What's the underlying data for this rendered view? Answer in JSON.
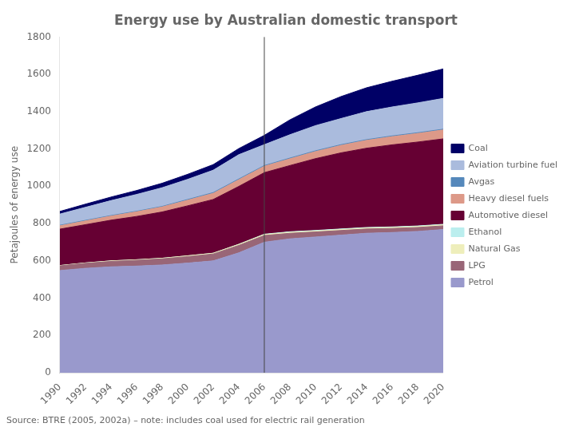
{
  "chart_data": {
    "type": "area",
    "title": "Energy use by Australian domestic transport",
    "source": "Source: BTRE (2005, 2002a) – note: includes coal used for electric rail generation",
    "ylabel": "Petajoules of energy use",
    "x": [
      1990,
      1992,
      1994,
      1996,
      1998,
      2000,
      2002,
      2004,
      2006,
      2008,
      2010,
      2012,
      2014,
      2016,
      2018,
      2020
    ],
    "xlim": [
      1990,
      2020
    ],
    "xticks": [
      1990,
      1992,
      1994,
      1996,
      1998,
      2000,
      2002,
      2004,
      2006,
      2008,
      2010,
      2012,
      2014,
      2016,
      2018,
      2020
    ],
    "ylim": [
      0,
      1800
    ],
    "yticks": [
      0,
      200,
      400,
      600,
      800,
      1000,
      1200,
      1400,
      1600,
      1800
    ],
    "stacked": true,
    "grid": false,
    "legend": "right",
    "annotations": [
      {
        "x": 2006
      }
    ],
    "series": [
      {
        "name": "Petrol",
        "color": "#9999cc",
        "values": [
          548,
          560,
          568,
          572,
          578,
          588,
          600,
          643,
          700,
          718,
          728,
          738,
          748,
          752,
          758,
          768
        ]
      },
      {
        "name": "LPG",
        "color": "#996677",
        "values": [
          25,
          27,
          29,
          31,
          33,
          35,
          37,
          40,
          36,
          30,
          27,
          25,
          23,
          22,
          21,
          20
        ]
      },
      {
        "name": "Natural Gas",
        "color": "#eeeebb",
        "values": [
          2,
          2,
          3,
          3,
          3,
          4,
          4,
          5,
          5,
          5,
          5,
          5,
          5,
          5,
          5,
          5
        ]
      },
      {
        "name": "Ethanol",
        "color": "#bbeeee",
        "values": [
          0,
          0,
          0,
          0,
          0,
          0,
          0,
          1,
          2,
          3,
          3,
          3,
          3,
          3,
          3,
          3
        ]
      },
      {
        "name": "Automotive diesel",
        "color": "#660033",
        "values": [
          195,
          205,
          218,
          232,
          248,
          268,
          288,
          310,
          330,
          355,
          385,
          408,
          425,
          440,
          450,
          458
        ]
      },
      {
        "name": "Heavy diesel fuels",
        "color": "#dd9988",
        "values": [
          18,
          20,
          22,
          25,
          27,
          30,
          33,
          36,
          34,
          36,
          38,
          40,
          42,
          44,
          46,
          48
        ]
      },
      {
        "name": "Avgas",
        "color": "#5588bb",
        "values": [
          3,
          3,
          3,
          3,
          3,
          4,
          4,
          4,
          4,
          4,
          4,
          4,
          4,
          4,
          4,
          4
        ]
      },
      {
        "name": "Aviation turbine fuel",
        "color": "#aabbdd",
        "values": [
          60,
          70,
          80,
          90,
          100,
          108,
          120,
          130,
          112,
          125,
          135,
          140,
          150,
          155,
          160,
          165
        ]
      },
      {
        "name": "Coal",
        "color": "#000066",
        "values": [
          14,
          17,
          19,
          21,
          24,
          27,
          30,
          33,
          50,
          80,
          100,
          118,
          128,
          138,
          148,
          158
        ]
      }
    ]
  }
}
